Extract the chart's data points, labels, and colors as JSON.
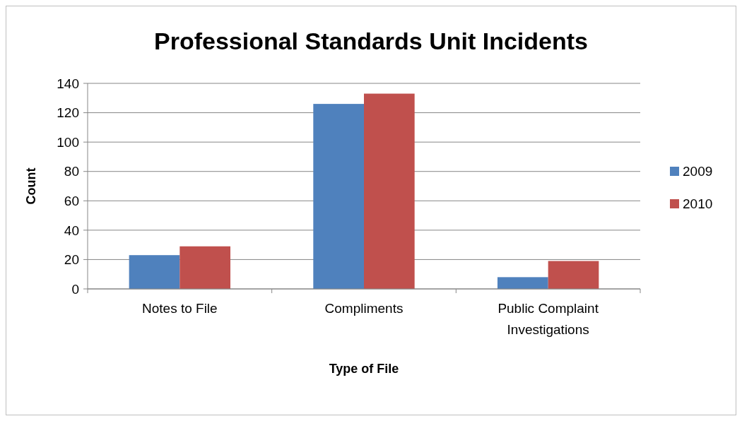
{
  "chart_data": {
    "type": "bar",
    "title": "Professional Standards Unit Incidents",
    "xlabel": "Type of File",
    "ylabel": "Count",
    "categories": [
      "Notes to File",
      "Compliments",
      "Public Complaint Investigations"
    ],
    "series": [
      {
        "name": "2009",
        "color": "#4f81bd",
        "values": [
          23,
          126,
          8
        ]
      },
      {
        "name": "2010",
        "color": "#c0504d",
        "values": [
          29,
          133,
          19
        ]
      }
    ],
    "ylim": [
      0,
      140
    ],
    "yticks": [
      0,
      20,
      40,
      60,
      80,
      100,
      120,
      140
    ],
    "grid": "y",
    "legend": "right"
  }
}
